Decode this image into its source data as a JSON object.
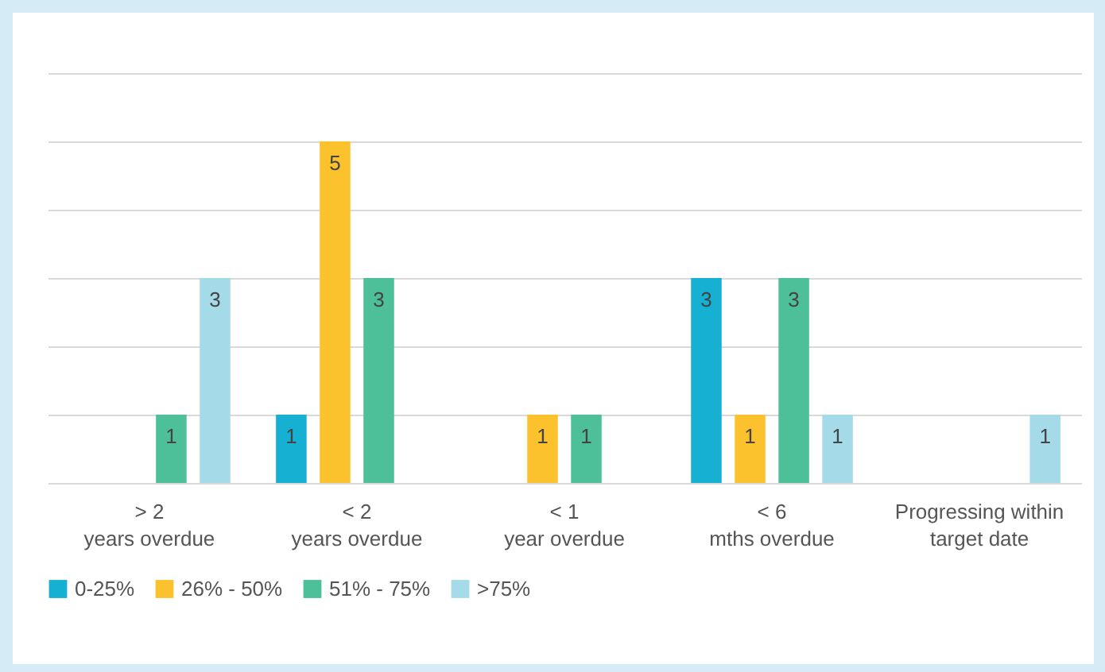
{
  "chart_data": {
    "type": "bar",
    "categories": [
      "> 2 years overdue",
      "< 2 years overdue",
      "< 1 year overdue",
      "< 6 mths overdue",
      "Progressing within target date"
    ],
    "series": [
      {
        "name": "0-25%",
        "color": "#16b0d2",
        "values": [
          null,
          1,
          null,
          3,
          null
        ]
      },
      {
        "name": "26% - 50%",
        "color": "#fbc22d",
        "values": [
          null,
          5,
          1,
          1,
          null
        ]
      },
      {
        "name": "51% - 75%",
        "color": "#4dbf99",
        "values": [
          1,
          3,
          1,
          3,
          null
        ]
      },
      {
        "name": ">75%",
        "color": "#a5dbe9",
        "values": [
          3,
          null,
          null,
          1,
          1
        ]
      }
    ],
    "ylim": [
      0,
      6
    ],
    "yticks": [
      {
        "value": 0,
        "label": null
      },
      {
        "value": 1,
        "label": null
      },
      {
        "value": 2,
        "label": null
      },
      {
        "value": 3,
        "label": null
      },
      {
        "value": 4,
        "label": null
      },
      {
        "value": 5,
        "label": null
      },
      {
        "value": 6,
        "label": null
      }
    ],
    "tick_labels": "x",
    "grid": "y",
    "legend": "bottom",
    "data_labels": true
  }
}
